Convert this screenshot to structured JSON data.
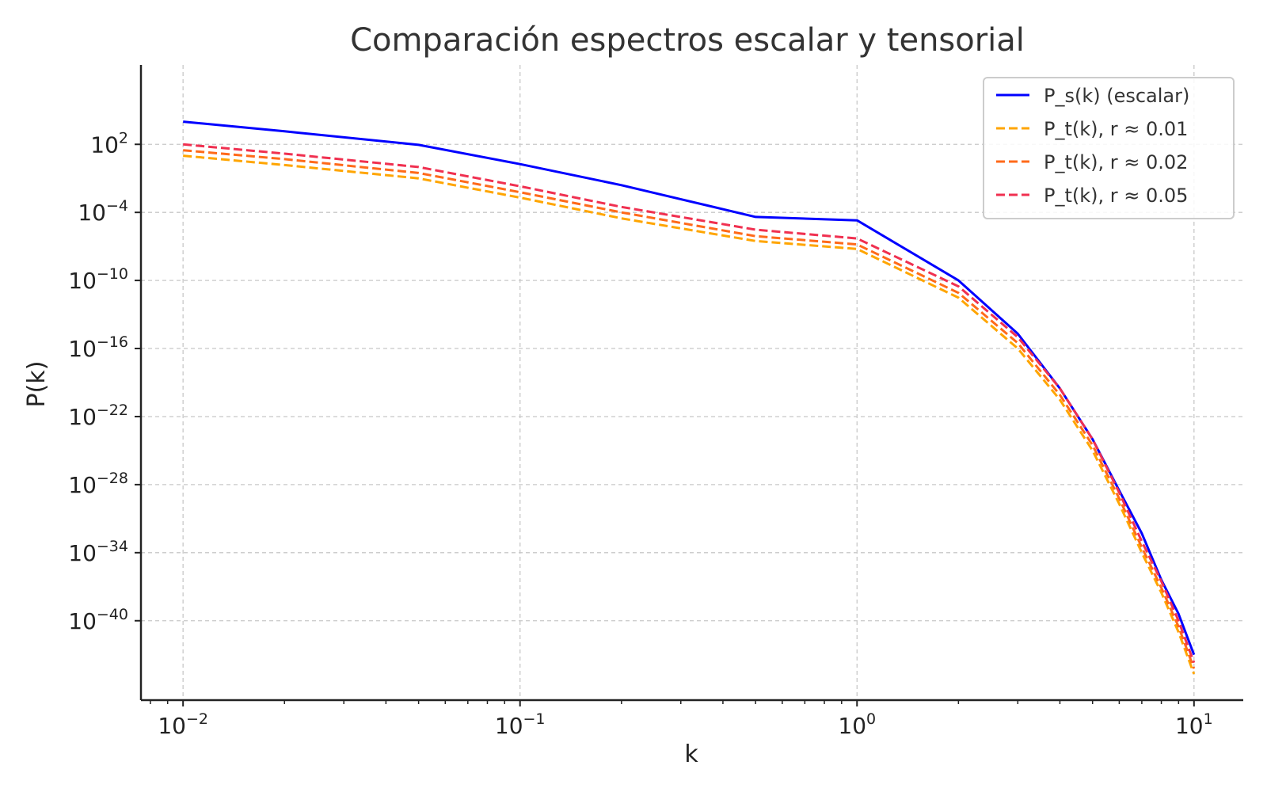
{
  "chart_data": {
    "type": "line",
    "title": "Comparación espectros escalar y tensorial",
    "xlabel": "k",
    "ylabel": "P(k)",
    "xscale": "log",
    "yscale": "log",
    "xlim": [
      0.0075,
      14
    ],
    "ylim": [
      1e-47,
      1000000000.0
    ],
    "x_ticks": [
      {
        "value": 0.01,
        "base": "10",
        "exp": "−2"
      },
      {
        "value": 0.1,
        "base": "10",
        "exp": "−1"
      },
      {
        "value": 1,
        "base": "10",
        "exp": "0"
      },
      {
        "value": 10,
        "base": "10",
        "exp": "1"
      }
    ],
    "y_ticks": [
      {
        "value": 100.0,
        "base": "10",
        "exp": "2"
      },
      {
        "value": 0.0001,
        "base": "10",
        "exp": "−4"
      },
      {
        "value": 1e-10,
        "base": "10",
        "exp": "−10"
      },
      {
        "value": 1e-16,
        "base": "10",
        "exp": "−16"
      },
      {
        "value": 1e-22,
        "base": "10",
        "exp": "−22"
      },
      {
        "value": 1e-28,
        "base": "10",
        "exp": "−28"
      },
      {
        "value": 1e-34,
        "base": "10",
        "exp": "−34"
      },
      {
        "value": 1e-40,
        "base": "10",
        "exp": "−40"
      }
    ],
    "grid": true,
    "legend_position": "top-right",
    "x": [
      0.01,
      0.02,
      0.05,
      0.1,
      0.2,
      0.5,
      1,
      2,
      3,
      4,
      5,
      6,
      7,
      8,
      9,
      10
    ],
    "series": [
      {
        "name": "P_s(k) (escalar)",
        "color": "#0000ff",
        "dash": "solid",
        "values": [
          10000.0,
          1400.0,
          90.0,
          1.8,
          0.025,
          4e-05,
          2e-05,
          1e-10,
          2e-15,
          3e-20,
          1e-24,
          3e-29,
          5e-33,
          4e-37,
          4e-40,
          1e-43
        ]
      },
      {
        "name": "P_t(k), r ≈ 0.01",
        "color": "#ffa500",
        "dash": "dashed",
        "values": [
          10.0,
          1.5,
          0.1,
          0.002,
          3e-05,
          3e-07,
          6e-08,
          3e-12,
          1e-16,
          3e-21,
          1e-25,
          2e-30,
          1e-34,
          3e-38,
          1e-41,
          2e-45
        ]
      },
      {
        "name": "P_t(k), r ≈ 0.02",
        "color": "#ff6a1a",
        "dash": "dashed",
        "values": [
          30.0,
          5.0,
          0.3,
          0.006,
          0.0001,
          8e-07,
          1.5e-07,
          8e-12,
          3e-16,
          8e-21,
          3e-25,
          6e-30,
          3e-34,
          8e-38,
          3e-41,
          6e-45
        ]
      },
      {
        "name": "P_t(k), r ≈ 0.05",
        "color": "#f03050",
        "dash": "dashed",
        "values": [
          100.0,
          15.0,
          1.0,
          0.02,
          0.0003,
          3e-06,
          5e-07,
          3e-11,
          1e-15,
          3e-20,
          1e-24,
          2e-29,
          1e-33,
          3e-37,
          1e-40,
          2e-44
        ]
      }
    ]
  }
}
